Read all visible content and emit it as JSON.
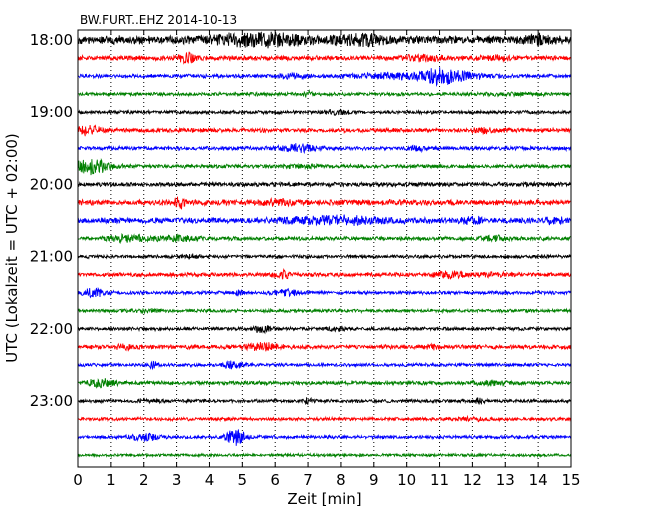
{
  "chart_data": {
    "type": "line",
    "title": "BW.FURT..EHZ 2014-10-13",
    "xlabel": "Zeit  [min]",
    "ylabel": "UTC (Lokalzeit = UTC + 02:00)",
    "xlim": [
      0,
      15
    ],
    "x_ticks": [
      "0",
      "1",
      "2",
      "3",
      "4",
      "5",
      "6",
      "7",
      "8",
      "9",
      "10",
      "11",
      "12",
      "13",
      "14",
      "15"
    ],
    "y_ticks": [
      "18:00",
      "19:00",
      "20:00",
      "21:00",
      "22:00",
      "23:00"
    ],
    "y_tick_rows": [
      0,
      4,
      8,
      12,
      16,
      20
    ],
    "grid": "vertical-dotted",
    "colors": [
      "#000000",
      "#ff0000",
      "#0000ff",
      "#008000"
    ],
    "traces": [
      {
        "start": "18:00",
        "amp": 0.9,
        "bursts": [
          [
            5.5,
            1.0,
            2.2
          ],
          [
            8.6,
            0.5,
            2.0
          ],
          [
            14.0,
            0.3,
            1.8
          ]
        ]
      },
      {
        "start": "18:15",
        "amp": 0.5,
        "bursts": [
          [
            3.3,
            0.2,
            3.0
          ],
          [
            10.5,
            0.5,
            2.0
          ],
          [
            12.7,
            0.3,
            1.8
          ]
        ]
      },
      {
        "start": "18:30",
        "amp": 0.4,
        "bursts": [
          [
            6.5,
            0.3,
            2.0
          ],
          [
            9.5,
            0.8,
            2.5
          ],
          [
            11.0,
            0.4,
            5.0
          ],
          [
            11.8,
            0.5,
            2.5
          ]
        ]
      },
      {
        "start": "18:45",
        "amp": 0.35,
        "bursts": [
          [
            7.0,
            0.1,
            3.0
          ],
          [
            13.2,
            0.6,
            1.5
          ]
        ]
      },
      {
        "start": "19:00",
        "amp": 0.35,
        "bursts": [
          [
            7.9,
            0.3,
            2.5
          ]
        ]
      },
      {
        "start": "19:15",
        "amp": 0.45,
        "bursts": [
          [
            0.3,
            0.3,
            3.0
          ],
          [
            12.4,
            0.3,
            2.0
          ]
        ]
      },
      {
        "start": "19:30",
        "amp": 0.4,
        "bursts": [
          [
            6.7,
            0.4,
            3.0
          ],
          [
            10.3,
            0.2,
            2.0
          ]
        ]
      },
      {
        "start": "19:45",
        "amp": 0.4,
        "bursts": [
          [
            0.4,
            0.4,
            5.0
          ],
          [
            6.8,
            0.4,
            1.6
          ]
        ]
      },
      {
        "start": "20:00",
        "amp": 0.45,
        "bursts": []
      },
      {
        "start": "20:15",
        "amp": 0.6,
        "bursts": [
          [
            3.1,
            0.1,
            3.0
          ],
          [
            6.0,
            0.4,
            1.6
          ]
        ]
      },
      {
        "start": "20:30",
        "amp": 0.6,
        "bursts": [
          [
            7.8,
            1.2,
            2.2
          ],
          [
            12.0,
            0.3,
            1.8
          ],
          [
            14.5,
            0.2,
            2.0
          ]
        ]
      },
      {
        "start": "20:45",
        "amp": 0.4,
        "bursts": [
          [
            1.5,
            0.4,
            2.8
          ],
          [
            3.0,
            0.4,
            2.4
          ],
          [
            12.7,
            0.3,
            2.2
          ]
        ]
      },
      {
        "start": "21:00",
        "amp": 0.35,
        "bursts": [
          [
            3.5,
            0.2,
            2.0
          ]
        ]
      },
      {
        "start": "21:15",
        "amp": 0.45,
        "bursts": [
          [
            6.2,
            0.2,
            2.5
          ],
          [
            11.3,
            0.3,
            2.5
          ],
          [
            12.5,
            0.5,
            1.6
          ]
        ]
      },
      {
        "start": "21:30",
        "amp": 0.35,
        "bursts": [
          [
            0.5,
            0.3,
            3.5
          ],
          [
            4.9,
            0.1,
            2.5
          ],
          [
            6.3,
            0.3,
            3.0
          ]
        ]
      },
      {
        "start": "21:45",
        "amp": 0.35,
        "bursts": [
          [
            2.1,
            0.3,
            1.8
          ]
        ]
      },
      {
        "start": "22:00",
        "amp": 0.35,
        "bursts": [
          [
            5.6,
            0.2,
            3.0
          ],
          [
            7.9,
            0.2,
            2.4
          ]
        ]
      },
      {
        "start": "22:15",
        "amp": 0.45,
        "bursts": [
          [
            1.4,
            0.2,
            2.0
          ],
          [
            5.6,
            0.4,
            2.5
          ],
          [
            10.8,
            0.2,
            1.8
          ]
        ]
      },
      {
        "start": "22:30",
        "amp": 0.35,
        "bursts": [
          [
            2.3,
            0.1,
            3.0
          ],
          [
            4.7,
            0.2,
            3.2
          ]
        ]
      },
      {
        "start": "22:45",
        "amp": 0.4,
        "bursts": [
          [
            0.7,
            0.3,
            3.0
          ],
          [
            12.6,
            0.3,
            2.0
          ]
        ]
      },
      {
        "start": "23:00",
        "amp": 0.35,
        "bursts": [
          [
            2.2,
            0.3,
            1.6
          ],
          [
            7.0,
            0.1,
            2.5
          ],
          [
            12.2,
            0.1,
            3.2
          ]
        ]
      },
      {
        "start": "23:15",
        "amp": 0.35,
        "bursts": [
          [
            11.9,
            0.4,
            1.8
          ]
        ]
      },
      {
        "start": "23:30",
        "amp": 0.35,
        "bursts": [
          [
            2.0,
            0.3,
            3.0
          ],
          [
            4.8,
            0.2,
            6.0
          ]
        ]
      },
      {
        "start": "23:45",
        "amp": 0.3,
        "bursts": []
      }
    ]
  }
}
